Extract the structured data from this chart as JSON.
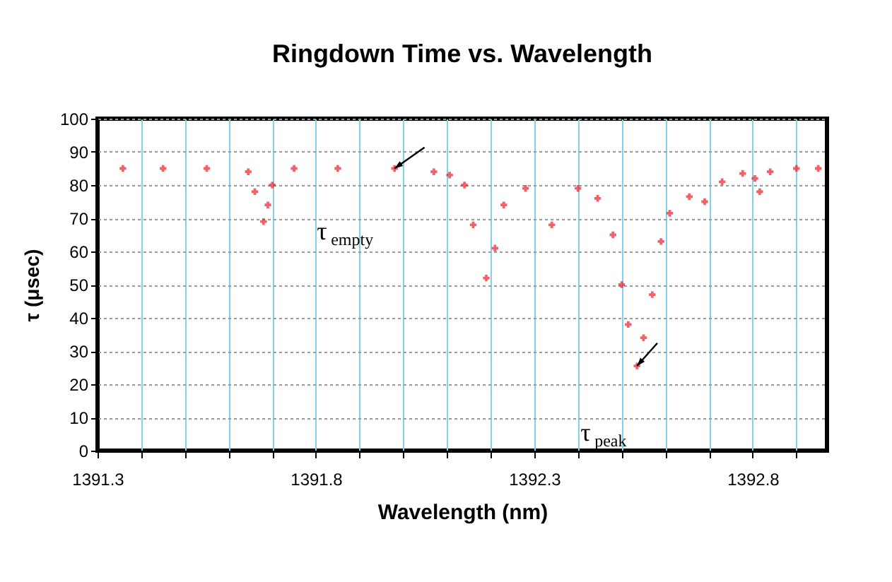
{
  "chart_data": {
    "type": "scatter",
    "title": "Ringdown Time vs. Wavelength",
    "xlabel": "Wavelength (nm)",
    "ylabel": "τ (μsec)",
    "x": [
      1391.358,
      1391.45,
      1391.55,
      1391.645,
      1391.66,
      1391.68,
      1391.69,
      1391.7,
      1391.75,
      1391.85,
      1391.98,
      1392.07,
      1392.106,
      1392.14,
      1392.16,
      1392.19,
      1392.21,
      1392.23,
      1392.28,
      1392.34,
      1392.4,
      1392.445,
      1392.48,
      1392.5,
      1392.515,
      1392.535,
      1392.55,
      1392.57,
      1392.59,
      1392.61,
      1392.655,
      1392.69,
      1392.73,
      1392.777,
      1392.805,
      1392.816,
      1392.84,
      1392.9,
      1392.95
    ],
    "series": [
      {
        "color": "#e8202a",
        "values": [
          85,
          85,
          85,
          84,
          78,
          69,
          74,
          80,
          85,
          85,
          85,
          84,
          83,
          80,
          68,
          52,
          61,
          74,
          79,
          68,
          79,
          76,
          65,
          50,
          38,
          25.5,
          34,
          47,
          63,
          71.5,
          76.5,
          75,
          81,
          83.5,
          82,
          78,
          84,
          85,
          85
        ]
      }
    ],
    "xlim": [
      1391.3,
      1392.97
    ],
    "xticks": [
      1391.3,
      {
        "value": 1391.4,
        "label": null
      },
      {
        "value": 1391.5,
        "label": null
      },
      {
        "value": 1391.6,
        "label": null
      },
      {
        "value": 1391.7,
        "label": null
      },
      1391.8,
      {
        "value": 1391.9,
        "label": null
      },
      {
        "value": 1392.0,
        "label": null
      },
      {
        "value": 1392.1,
        "label": null
      },
      {
        "value": 1392.2,
        "label": null
      },
      1392.3,
      {
        "value": 1392.4,
        "label": null
      },
      {
        "value": 1392.5,
        "label": null
      },
      {
        "value": 1392.6,
        "label": null
      },
      {
        "value": 1392.7,
        "label": null
      },
      1392.8,
      {
        "value": 1392.9,
        "label": null
      }
    ],
    "ylim": [
      0,
      100
    ],
    "yticks": [
      0,
      10,
      20,
      30,
      40,
      50,
      60,
      70,
      80,
      90,
      100
    ],
    "grid": true,
    "marker": "cross",
    "annotations": [
      {
        "text": "τ$_{empty}$",
        "x": 1391.98,
        "y": 85
      },
      {
        "text": "τ$_{peak}$",
        "x": 1392.535,
        "y": 25.5
      }
    ]
  }
}
